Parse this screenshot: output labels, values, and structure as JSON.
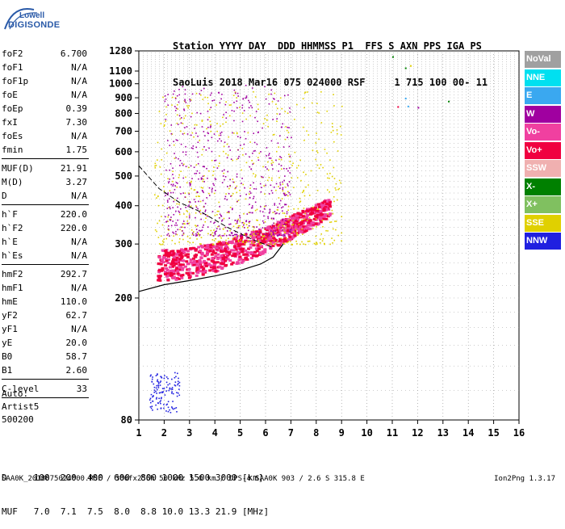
{
  "logo": {
    "line1": "Lowell",
    "line2": "DIGISONDE"
  },
  "header": {
    "line1": "Station YYYY DAY  DDD HHMMSS P1  FFS S AXN PPS IGA PS",
    "line2": "SaoLuis 2018 Mar16 075 024000 RSF     1 715 100 00- 11"
  },
  "params_group1": [
    {
      "k": "foF2",
      "v": "6.700"
    },
    {
      "k": "foF1",
      "v": "N/A"
    },
    {
      "k": "foF1p",
      "v": "N/A"
    },
    {
      "k": "foE",
      "v": "N/A"
    },
    {
      "k": "foEp",
      "v": "0.39"
    },
    {
      "k": "fxI",
      "v": "7.30"
    },
    {
      "k": "foEs",
      "v": "N/A"
    },
    {
      "k": "fmin",
      "v": "1.75"
    }
  ],
  "params_group2": [
    {
      "k": "MUF(D)",
      "v": "21.91"
    },
    {
      "k": "M(D)",
      "v": "3.27"
    },
    {
      "k": "D",
      "v": "N/A"
    }
  ],
  "params_group3": [
    {
      "k": "h`F",
      "v": "220.0"
    },
    {
      "k": "h`F2",
      "v": "220.0"
    },
    {
      "k": "h`E",
      "v": "N/A"
    },
    {
      "k": "h`Es",
      "v": "N/A"
    }
  ],
  "params_group4": [
    {
      "k": "hmF2",
      "v": "292.7"
    },
    {
      "k": "hmF1",
      "v": "N/A"
    },
    {
      "k": "hmE",
      "v": "110.0"
    },
    {
      "k": "yF2",
      "v": "62.7"
    },
    {
      "k": "yF1",
      "v": "N/A"
    },
    {
      "k": "yE",
      "v": "20.0"
    },
    {
      "k": "B0",
      "v": "58.7"
    },
    {
      "k": "B1",
      "v": "2.60"
    }
  ],
  "params_group5": [
    {
      "k": "C-level",
      "v": "33"
    }
  ],
  "auto": {
    "line1": "Auto:",
    "line2": "Artist5",
    "line3": "500200"
  },
  "dmuf": {
    "line1": "D     100  200  400  600  800 1000 1500 3000 [km]",
    "line2": "MUF   7.0  7.1  7.5  8.0  8.8 10.0 13.3 21.9 [MHz]"
  },
  "footer": {
    "left": "SAA0K_2018075024000.RSF / 300fx256h 50 kHz 5.0 km / DPS-4 SAA0K 903 / 2.6 S 315.8 E",
    "right": "Ion2Png 1.3.17"
  },
  "legend": [
    {
      "label": "NoVal",
      "color": "#a0a0a0"
    },
    {
      "label": "NNE",
      "color": "#00e0f0"
    },
    {
      "label": "E",
      "color": "#3aa8f0"
    },
    {
      "label": "W",
      "color": "#a000a0"
    },
    {
      "label": "Vo-",
      "color": "#f040a0"
    },
    {
      "label": "Vo+",
      "color": "#f00040"
    },
    {
      "label": "SSW",
      "color": "#f0b0b0"
    },
    {
      "label": "X-",
      "color": "#008000"
    },
    {
      "label": "X+",
      "color": "#80c060"
    },
    {
      "label": "SSE",
      "color": "#e0d000"
    },
    {
      "label": "NNW",
      "color": "#2020e0"
    }
  ],
  "chart_data": {
    "type": "scatter",
    "title": "",
    "xlabel": "",
    "ylabel": "",
    "xlim": [
      1,
      16
    ],
    "ylim": [
      80,
      1280
    ],
    "y_scale": "log",
    "x_ticks": [
      "1",
      "2",
      "3",
      "4",
      "5",
      "6",
      "7",
      "8",
      "9",
      "10",
      "11",
      "12",
      "13",
      "14",
      "15",
      "16"
    ],
    "y_ticks": [
      {
        "v": 80,
        "label": "80"
      },
      {
        "v": 200,
        "label": "200"
      },
      {
        "v": 300,
        "label": "300"
      },
      {
        "v": 400,
        "label": "400"
      },
      {
        "v": 500,
        "label": "500"
      },
      {
        "v": 600,
        "label": "600"
      },
      {
        "v": 700,
        "label": "700"
      },
      {
        "v": 800,
        "label": "800"
      },
      {
        "v": 900,
        "label": "900"
      },
      {
        "v": 1000,
        "label": "1000"
      },
      {
        "v": 1100,
        "label": "1100"
      },
      {
        "v": 1280,
        "label": "1280"
      }
    ],
    "grid": "dotted",
    "echo_regions": [
      {
        "name": "Vo+ / Vo- trace",
        "x_range": [
          1.7,
          8.5
        ],
        "y_range": [
          230,
          430
        ],
        "colors": [
          "#f00040",
          "#f040a0"
        ]
      },
      {
        "name": "SSE spread",
        "x_range": [
          1.6,
          9.0
        ],
        "y_range": [
          300,
          950
        ],
        "colors": [
          "#e0d000"
        ]
      },
      {
        "name": "W spread",
        "x_range": [
          2.0,
          7.0
        ],
        "y_range": [
          320,
          1000
        ],
        "colors": [
          "#a000a0"
        ]
      },
      {
        "name": "NNW low echo",
        "x_range": [
          1.4,
          2.6
        ],
        "y_range": [
          85,
          115
        ],
        "colors": [
          "#2020e0"
        ]
      }
    ],
    "isolated_points": [
      {
        "x": 11.0,
        "y": 1230,
        "color": "#008000"
      },
      {
        "x": 11.5,
        "y": 1130,
        "color": "#008000"
      },
      {
        "x": 11.7,
        "y": 1150,
        "color": "#e0d000"
      },
      {
        "x": 11.5,
        "y": 900,
        "color": "#3aa8f0"
      },
      {
        "x": 11.2,
        "y": 845,
        "color": "#f00040"
      },
      {
        "x": 11.6,
        "y": 848,
        "color": "#3aa8f0"
      },
      {
        "x": 12.0,
        "y": 840,
        "color": "#a000a0"
      },
      {
        "x": 13.2,
        "y": 880,
        "color": "#008000"
      }
    ],
    "trace_o": [
      {
        "x": 1.0,
        "y": 210
      },
      {
        "x": 2.0,
        "y": 221
      },
      {
        "x": 3.0,
        "y": 228
      },
      {
        "x": 4.0,
        "y": 236
      },
      {
        "x": 5.0,
        "y": 246
      },
      {
        "x": 5.8,
        "y": 258
      },
      {
        "x": 6.3,
        "y": 272
      },
      {
        "x": 6.7,
        "y": 300
      }
    ],
    "profile_dashed": [
      {
        "x": 1.0,
        "y": 540
      },
      {
        "x": 1.8,
        "y": 455
      },
      {
        "x": 2.6,
        "y": 410
      },
      {
        "x": 3.5,
        "y": 380
      },
      {
        "x": 4.5,
        "y": 340
      },
      {
        "x": 5.5,
        "y": 310
      },
      {
        "x": 6.3,
        "y": 292
      }
    ]
  }
}
